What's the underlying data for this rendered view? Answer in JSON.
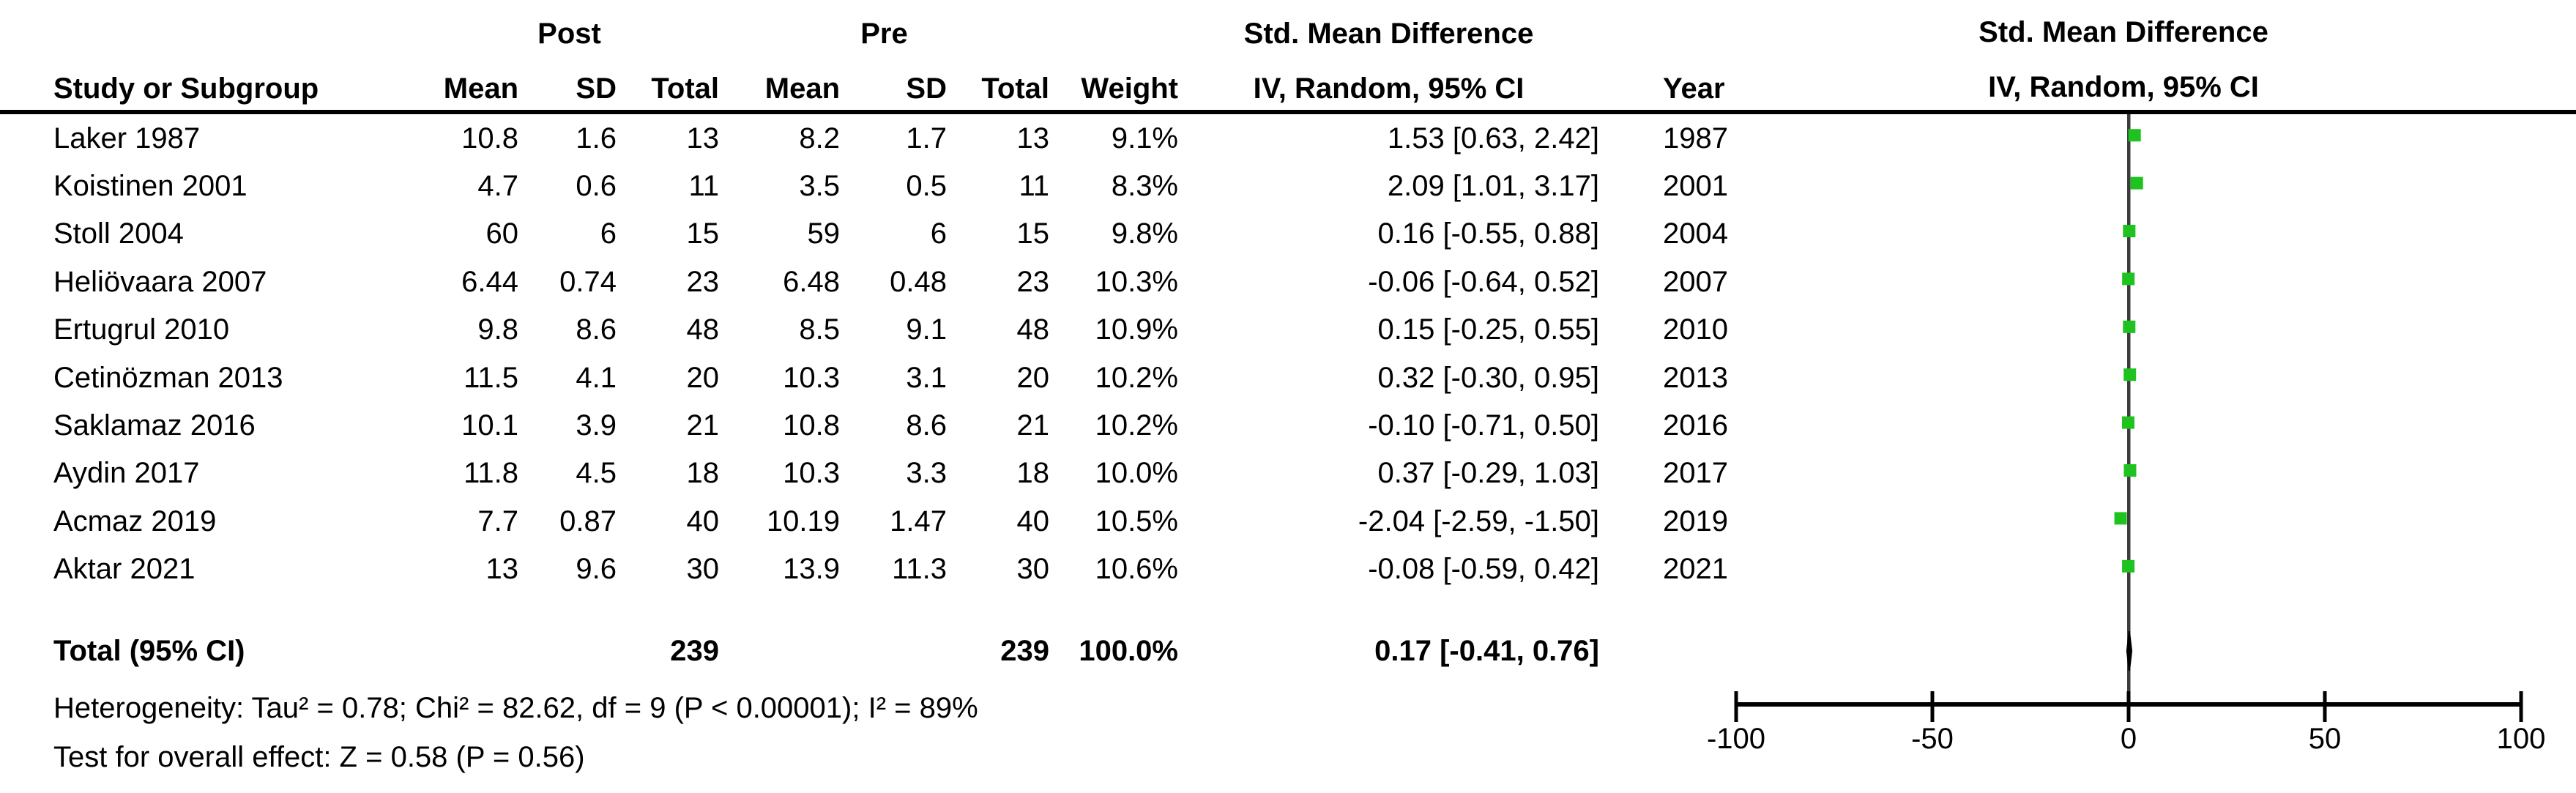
{
  "table": {
    "group_headers": {
      "post": "Post",
      "pre": "Pre",
      "smd": "Std. Mean Difference"
    },
    "columns": {
      "study": "Study or Subgroup",
      "post_mean": "Mean",
      "post_sd": "SD",
      "post_total": "Total",
      "pre_mean": "Mean",
      "pre_sd": "SD",
      "pre_total": "Total",
      "weight": "Weight",
      "ci": "IV, Random, 95% CI",
      "year": "Year"
    }
  },
  "plot_panel": {
    "header_line1": "Std. Mean Difference",
    "header_line2": "IV, Random, 95% CI"
  },
  "chart_data": {
    "type": "forest",
    "effect_measure": "Std. Mean Difference",
    "model": "IV, Random, 95% CI",
    "x_axis": {
      "min": -100,
      "max": 100,
      "ticks": [
        -100,
        -50,
        0,
        50,
        100
      ]
    },
    "marker_color": "#1FC31F",
    "line_color": "#000000",
    "zero_line_color": "#3c3c3c",
    "studies": [
      {
        "study": "Laker 1987",
        "post_mean": "10.8",
        "post_sd": "1.6",
        "post_total": "13",
        "pre_mean": "8.2",
        "pre_sd": "1.7",
        "pre_total": "13",
        "weight": "9.1%",
        "ci_text": "1.53 [0.63, 2.42]",
        "year": "1987",
        "smd": 1.53,
        "ci_low": 0.63,
        "ci_high": 2.42
      },
      {
        "study": "Koistinen 2001",
        "post_mean": "4.7",
        "post_sd": "0.6",
        "post_total": "11",
        "pre_mean": "3.5",
        "pre_sd": "0.5",
        "pre_total": "11",
        "weight": "8.3%",
        "ci_text": "2.09 [1.01, 3.17]",
        "year": "2001",
        "smd": 2.09,
        "ci_low": 1.01,
        "ci_high": 3.17
      },
      {
        "study": "Stoll 2004",
        "post_mean": "60",
        "post_sd": "6",
        "post_total": "15",
        "pre_mean": "59",
        "pre_sd": "6",
        "pre_total": "15",
        "weight": "9.8%",
        "ci_text": "0.16 [-0.55, 0.88]",
        "year": "2004",
        "smd": 0.16,
        "ci_low": -0.55,
        "ci_high": 0.88
      },
      {
        "study": "Heliövaara 2007",
        "post_mean": "6.44",
        "post_sd": "0.74",
        "post_total": "23",
        "pre_mean": "6.48",
        "pre_sd": "0.48",
        "pre_total": "23",
        "weight": "10.3%",
        "ci_text": "-0.06 [-0.64, 0.52]",
        "year": "2007",
        "smd": -0.06,
        "ci_low": -0.64,
        "ci_high": 0.52
      },
      {
        "study": "Ertugrul 2010",
        "post_mean": "9.8",
        "post_sd": "8.6",
        "post_total": "48",
        "pre_mean": "8.5",
        "pre_sd": "9.1",
        "pre_total": "48",
        "weight": "10.9%",
        "ci_text": "0.15 [-0.25, 0.55]",
        "year": "2010",
        "smd": 0.15,
        "ci_low": -0.25,
        "ci_high": 0.55
      },
      {
        "study": "Cetinözman 2013",
        "post_mean": "11.5",
        "post_sd": "4.1",
        "post_total": "20",
        "pre_mean": "10.3",
        "pre_sd": "3.1",
        "pre_total": "20",
        "weight": "10.2%",
        "ci_text": "0.32 [-0.30, 0.95]",
        "year": "2013",
        "smd": 0.32,
        "ci_low": -0.3,
        "ci_high": 0.95
      },
      {
        "study": "Saklamaz 2016",
        "post_mean": "10.1",
        "post_sd": "3.9",
        "post_total": "21",
        "pre_mean": "10.8",
        "pre_sd": "8.6",
        "pre_total": "21",
        "weight": "10.2%",
        "ci_text": "-0.10 [-0.71, 0.50]",
        "year": "2016",
        "smd": -0.1,
        "ci_low": -0.71,
        "ci_high": 0.5
      },
      {
        "study": "Aydin 2017",
        "post_mean": "11.8",
        "post_sd": "4.5",
        "post_total": "18",
        "pre_mean": "10.3",
        "pre_sd": "3.3",
        "pre_total": "18",
        "weight": "10.0%",
        "ci_text": "0.37 [-0.29, 1.03]",
        "year": "2017",
        "smd": 0.37,
        "ci_low": -0.29,
        "ci_high": 1.03
      },
      {
        "study": "Acmaz 2019",
        "post_mean": "7.7",
        "post_sd": "0.87",
        "post_total": "40",
        "pre_mean": "10.19",
        "pre_sd": "1.47",
        "pre_total": "40",
        "weight": "10.5%",
        "ci_text": "-2.04 [-2.59, -1.50]",
        "year": "2019",
        "smd": -2.04,
        "ci_low": -2.59,
        "ci_high": -1.5
      },
      {
        "study": "Aktar 2021",
        "post_mean": "13",
        "post_sd": "9.6",
        "post_total": "30",
        "pre_mean": "13.9",
        "pre_sd": "11.3",
        "pre_total": "30",
        "weight": "10.6%",
        "ci_text": "-0.08 [-0.59, 0.42]",
        "year": "2021",
        "smd": -0.08,
        "ci_low": -0.59,
        "ci_high": 0.42
      }
    ],
    "total": {
      "label": "Total (95% CI)",
      "post_total": "239",
      "pre_total": "239",
      "weight": "100.0%",
      "ci_text": "0.17 [-0.41, 0.76]",
      "smd": 0.17,
      "ci_low": -0.41,
      "ci_high": 0.76
    },
    "heterogeneity": "Heterogeneity: Tau² = 0.78; Chi² = 82.62, df = 9 (P < 0.00001); I² = 89%",
    "overall_effect": "Test for overall effect: Z = 0.58 (P = 0.56)"
  }
}
